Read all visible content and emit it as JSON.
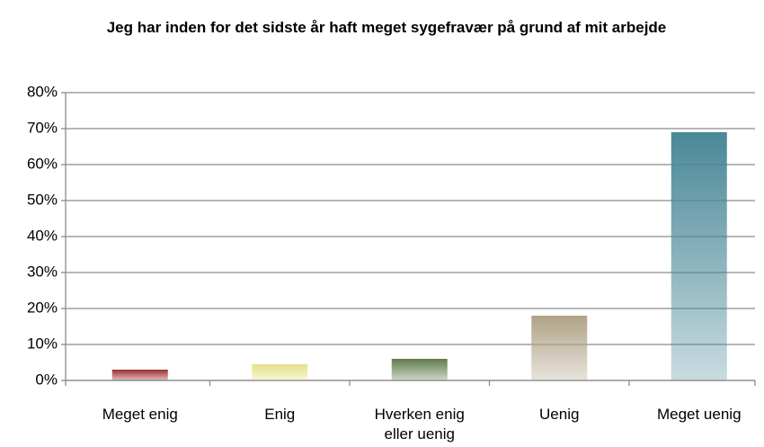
{
  "chart_data": {
    "type": "bar",
    "title": "Jeg har inden  for det sidste år haft meget sygefravær på grund af mit arbejde",
    "categories": [
      "Meget enig",
      "Enig",
      "Hverken enig eller uenig",
      "Uenig",
      "Meget uenig"
    ],
    "values": [
      3,
      4.5,
      6,
      18,
      69
    ],
    "colors": [
      "#9b2d30",
      "#e6df86",
      "#5f7a4a",
      "#b0a287",
      "#4a8898"
    ],
    "ylim": [
      0,
      80
    ],
    "yticks": [
      {
        "value": 0,
        "label": "0%"
      },
      {
        "value": 10,
        "label": "10%"
      },
      {
        "value": 20,
        "label": "20%"
      },
      {
        "value": 30,
        "label": "30%"
      },
      {
        "value": 40,
        "label": "40%"
      },
      {
        "value": 50,
        "label": "50%"
      },
      {
        "value": 60,
        "label": "60%"
      },
      {
        "value": 70,
        "label": "70%"
      },
      {
        "value": 80,
        "label": "80%"
      }
    ],
    "grid": true
  }
}
